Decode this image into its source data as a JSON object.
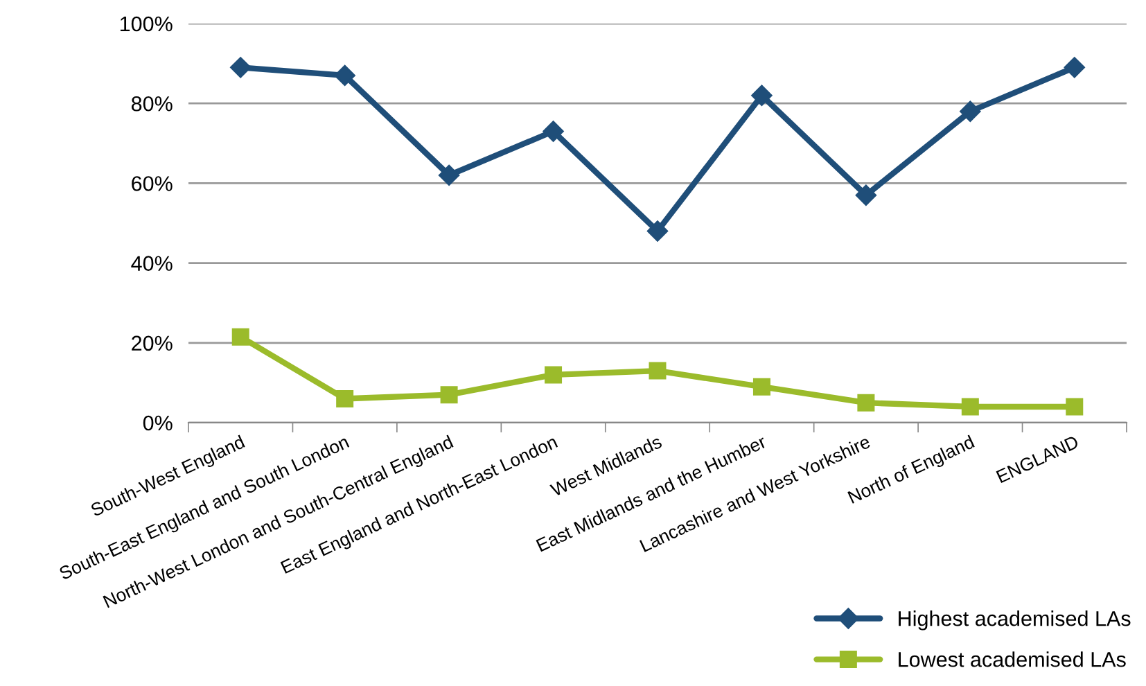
{
  "chart_data": {
    "type": "line",
    "categories": [
      "South-West England",
      "South-East England and South London",
      "North-West London and South-Central England",
      "East England and North-East London",
      "West Midlands",
      "East Midlands and the Humber",
      "Lancashire and West Yorkshire",
      "North of England",
      "ENGLAND"
    ],
    "series": [
      {
        "name": "Highest academised LAs",
        "color": "#1f4e79",
        "marker": "diamond",
        "values": [
          89,
          87,
          62,
          73,
          48,
          82,
          57,
          78,
          89
        ]
      },
      {
        "name": "Lowest academised LAs",
        "color": "#9bbb2b",
        "marker": "square",
        "values": [
          21.5,
          6,
          7,
          12,
          13,
          9,
          5,
          4,
          4
        ]
      }
    ],
    "ylim": [
      0,
      100
    ],
    "yticks": [
      {
        "value": 0,
        "label": "0%"
      },
      {
        "value": 20,
        "label": "20%"
      },
      {
        "value": 40,
        "label": "40%"
      },
      {
        "value": 60,
        "label": "60%"
      },
      {
        "value": 80,
        "label": "80%"
      },
      {
        "value": 100,
        "label": "100%"
      }
    ],
    "grid": "y",
    "legend": "bottom right",
    "line_style": "solid"
  }
}
